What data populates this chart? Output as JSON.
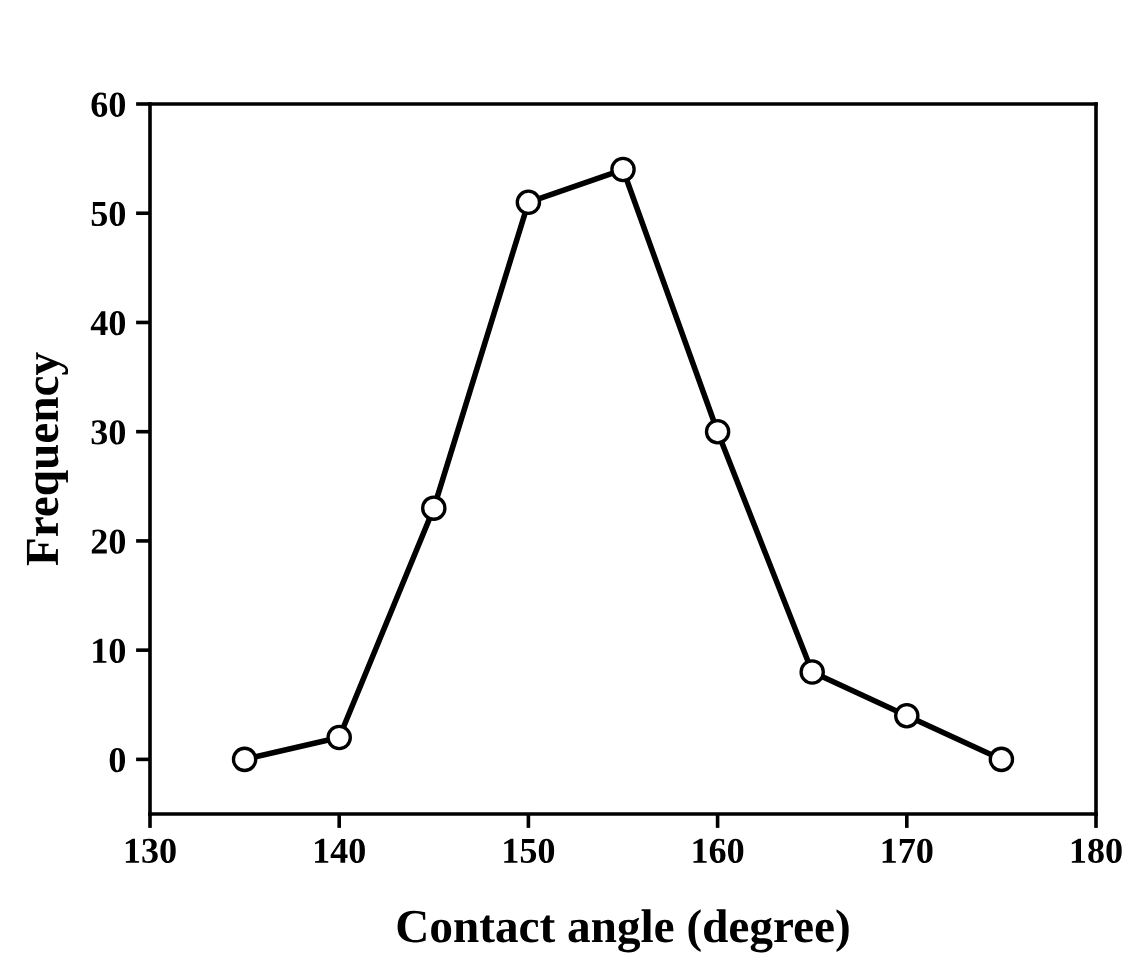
{
  "chart_data": {
    "type": "line",
    "xlabel": "Contact angle (degree)",
    "ylabel": "Frequency",
    "x": [
      135,
      140,
      145,
      150,
      155,
      160,
      165,
      170,
      175
    ],
    "series": [
      {
        "color": "#000000",
        "values": [
          0,
          2,
          23,
          51,
          54,
          30,
          8,
          4,
          0
        ]
      }
    ],
    "xlim": [
      130,
      180
    ],
    "ylim": [
      -5,
      60
    ],
    "xticks": [
      130,
      140,
      150,
      160,
      170,
      180
    ],
    "yticks": [
      0,
      10,
      20,
      30,
      40,
      50,
      60
    ],
    "marker": "circle",
    "line_style": "solid",
    "grid": false,
    "legend": false
  }
}
